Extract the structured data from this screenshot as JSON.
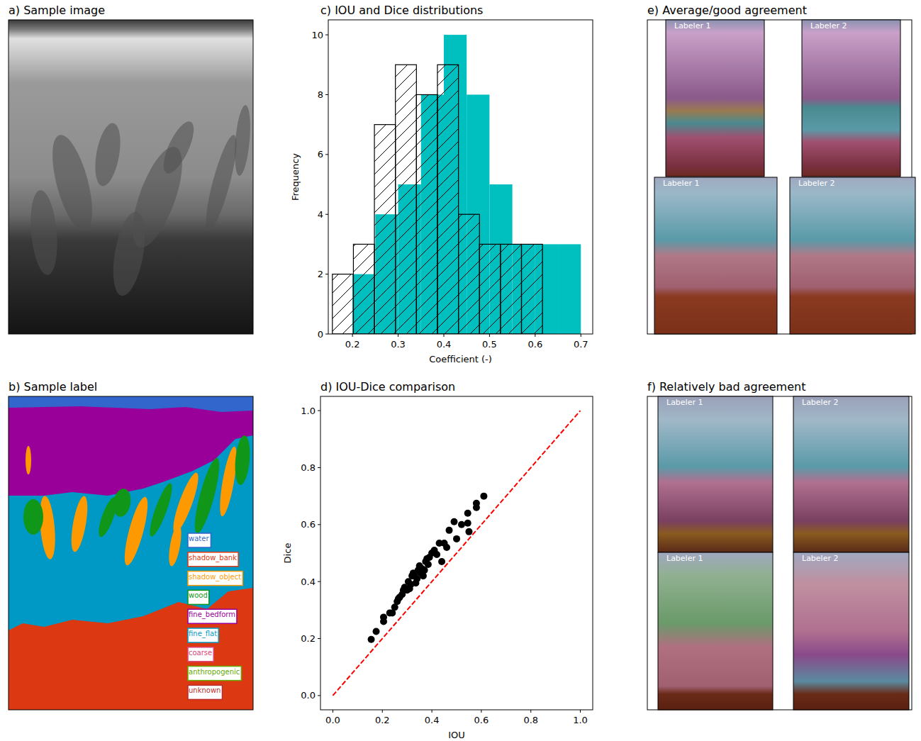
{
  "chart_data": [
    {
      "type": "image",
      "title": "a) Sample image"
    },
    {
      "type": "image",
      "title": "b) Sample label",
      "categories": [
        "water",
        "shadow_bank",
        "shadow_object",
        "wood",
        "fine_bedform",
        "fine_flat",
        "coarse",
        "anthropogenic",
        "unknown"
      ],
      "colors": [
        "#3366cc",
        "#dc3912",
        "#ff9900",
        "#109618",
        "#990099",
        "#0099c6",
        "#dd4477",
        "#66aa00",
        "#b82e2e"
      ]
    },
    {
      "type": "histogram",
      "title": "c) IOU and Dice distributions",
      "x_label": "Coefficient (-)",
      "y_label": "Frequency",
      "series": [
        {
          "color": "#00bfbf",
          "bins": [
            0.2,
            0.25,
            0.3,
            0.35,
            0.4,
            0.45,
            0.5,
            0.55,
            0.6,
            0.65,
            0.7
          ],
          "values": [
            2,
            4,
            5,
            8,
            10,
            8,
            5,
            3,
            3,
            3
          ]
        },
        {
          "color": "#000000",
          "line_style": "hatched",
          "bins": [
            0.156,
            0.202,
            0.248,
            0.294,
            0.34,
            0.386,
            0.432,
            0.478,
            0.524,
            0.57,
            0.616
          ],
          "values": [
            2,
            3,
            7,
            9,
            8,
            9,
            4,
            3,
            3,
            3
          ]
        }
      ],
      "xlim": [
        0.147,
        0.726
      ],
      "xticks": [
        0.2,
        0.3,
        0.4,
        0.5,
        0.6,
        0.7
      ],
      "ylim": [
        0,
        10.5
      ],
      "yticks": [
        0,
        2,
        4,
        6,
        8,
        10
      ]
    },
    {
      "type": "scatter",
      "title": "d) IOU-Dice comparison",
      "x_label": "IOU",
      "y_label": "Dice",
      "series": [
        {
          "type": "scatter",
          "color": "#000000",
          "marker": "circle",
          "x": [
            0.155,
            0.175,
            0.205,
            0.205,
            0.23,
            0.24,
            0.25,
            0.26,
            0.265,
            0.27,
            0.28,
            0.285,
            0.29,
            0.3,
            0.305,
            0.31,
            0.315,
            0.32,
            0.325,
            0.33,
            0.335,
            0.34,
            0.345,
            0.35,
            0.355,
            0.36,
            0.365,
            0.37,
            0.375,
            0.38,
            0.385,
            0.39,
            0.4,
            0.41,
            0.42,
            0.43,
            0.44,
            0.45,
            0.46,
            0.47,
            0.49,
            0.5,
            0.52,
            0.545,
            0.545,
            0.55,
            0.58,
            0.58,
            0.61
          ],
          "values": [
            0.197,
            0.225,
            0.26,
            0.275,
            0.29,
            0.29,
            0.31,
            0.33,
            0.34,
            0.345,
            0.355,
            0.37,
            0.38,
            0.37,
            0.4,
            0.375,
            0.39,
            0.42,
            0.43,
            0.42,
            0.395,
            0.41,
            0.44,
            0.455,
            0.43,
            0.445,
            0.42,
            0.44,
            0.47,
            0.48,
            0.46,
            0.485,
            0.5,
            0.51,
            0.495,
            0.535,
            0.47,
            0.535,
            0.52,
            0.58,
            0.61,
            0.55,
            0.6,
            0.605,
            0.64,
            0.575,
            0.66,
            0.675,
            0.7
          ]
        },
        {
          "type": "line",
          "color": "#ff0000",
          "line_style": "dashed",
          "x": [
            0,
            1
          ],
          "values": [
            0,
            1
          ]
        }
      ],
      "xlim": [
        -0.05,
        1.05
      ],
      "xticks": [
        {
          "value": 0,
          "label": "0.0"
        },
        0.2,
        0.4,
        0.6,
        0.8,
        {
          "value": 1,
          "label": "1.0"
        }
      ],
      "ylim": [
        -0.05,
        1.05
      ],
      "yticks": [
        {
          "value": 0,
          "label": "0.0"
        },
        0.2,
        0.4,
        0.6,
        0.8,
        {
          "value": 1,
          "label": "1.0"
        }
      ]
    },
    {
      "type": "image",
      "title": "e) Average/good agreement",
      "categories": [
        "Labeler 1",
        "Labeler 2"
      ]
    },
    {
      "type": "image",
      "title": "f) Relatively bad agreement",
      "categories": [
        "Labeler 1",
        "Labeler 2"
      ]
    }
  ]
}
